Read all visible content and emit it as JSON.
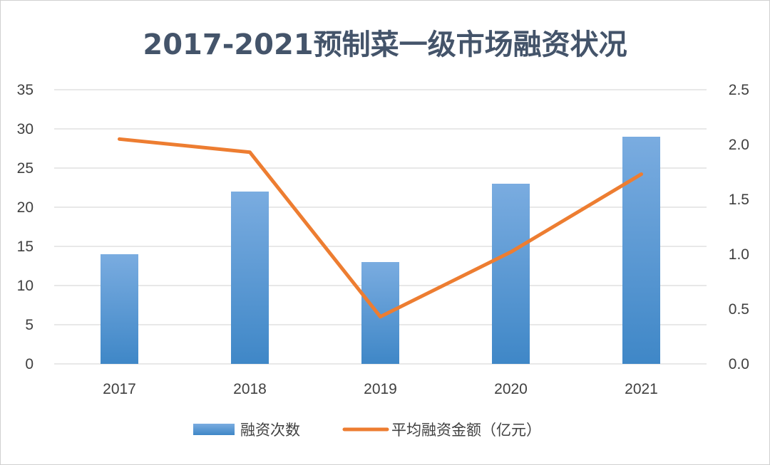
{
  "chart_data": {
    "type": "bar+line",
    "title": "2017-2021预制菜一级市场融资状况",
    "categories": [
      "2017",
      "2018",
      "2019",
      "2020",
      "2021"
    ],
    "series": [
      {
        "name": "融资次数",
        "type": "bar",
        "axis": "left",
        "color": "#5b9bd5",
        "values": [
          14,
          22,
          13,
          23,
          29
        ]
      },
      {
        "name": "平均融资金额（亿元）",
        "type": "line",
        "axis": "right",
        "color": "#ed7d31",
        "values": [
          2.05,
          1.93,
          0.43,
          1.02,
          1.73
        ]
      }
    ],
    "y_left": {
      "min": 0,
      "max": 35,
      "ticks": [
        "0",
        "5",
        "10",
        "15",
        "20",
        "25",
        "30",
        "35"
      ]
    },
    "y_right": {
      "min": 0,
      "max": 2.5,
      "ticks": [
        "0.0",
        "0.5",
        "1.0",
        "1.5",
        "2.0",
        "2.5"
      ]
    },
    "grid": true,
    "legend": "bottom"
  }
}
